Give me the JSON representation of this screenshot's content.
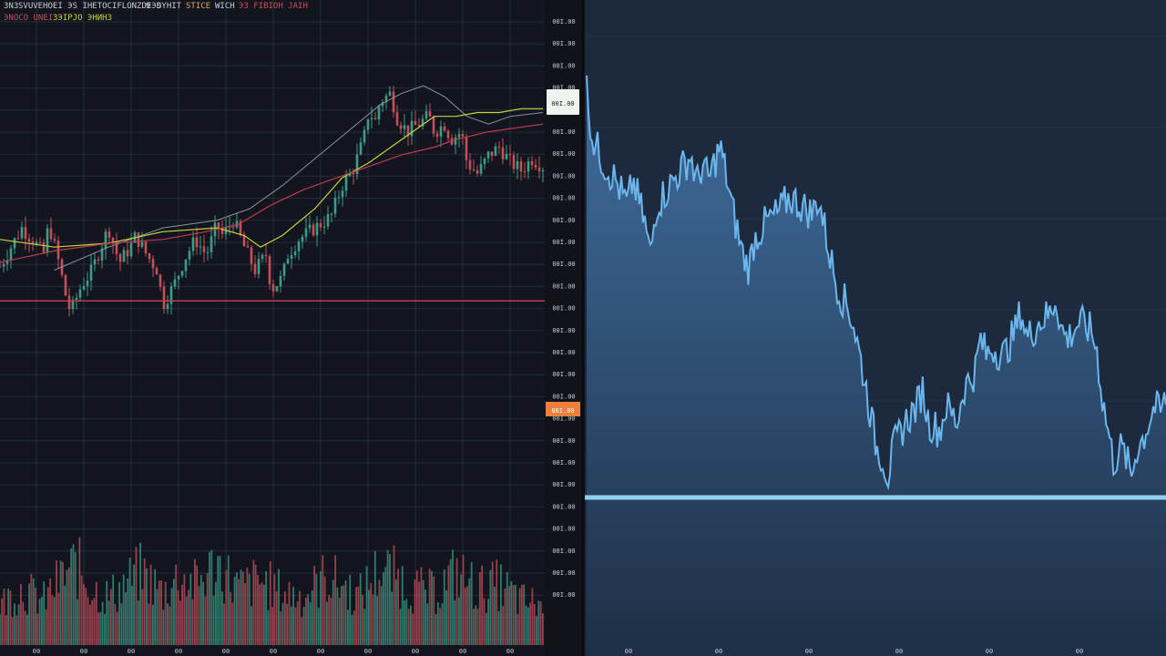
{
  "colors": {
    "background_left": "#12151d",
    "background_right": "#1d2a3d",
    "grid": "#262c38",
    "candle_up": "#3e9c86",
    "candle_down": "#c4505c",
    "ma_fast": "#c9d23f",
    "ma_slow": "#c0394f",
    "ma_thin": "#8c9099",
    "area_line": "#6cb6ee",
    "area_fill_top": "#3f6e9e",
    "area_fill_bottom": "#1e2f46",
    "support_line": "#8fd0ee",
    "price_tag_current": "#f1f3ef",
    "price_tag_alert": "#f07e3d",
    "alert_line": "#b8404c"
  },
  "header": {
    "line1_a": "ЗNЗ",
    "line1_b": "SVUVEHOEI ЭS IHETOCIFLONZDEЭD",
    "line1_c": "9",
    "line1_d": "SYHIT",
    "line1_e": "STICE",
    "line1_f": "WICH",
    "line1_g": "ЭЗ FIBIOH JAIH",
    "line2_a": "ЭNOCO UNEI",
    "line2_b": "ЗЭIPJO ЭНИНЗ"
  },
  "price_axis": {
    "labels": [
      "00I.00",
      "00I.00",
      "00I.00",
      "00I.00",
      "00I.00",
      "00I.00",
      "00I.00",
      "00I.00",
      "00I.00",
      "00I.00",
      "00I.00",
      "00I.00",
      "00I.00",
      "00I.00",
      "00I.00",
      "00I.00",
      "00I.00",
      "00I.00",
      "00I.00",
      "00I.00",
      "00I.00",
      "00I.00",
      "00I.00",
      "00I.00",
      "00I.00",
      "00I.00",
      "00I.00"
    ],
    "current_tag": "00I.00",
    "alert_tag": "00I.00"
  },
  "time_axis": {
    "left_labels": [
      "00",
      "00",
      "00",
      "00",
      "00",
      "00",
      "00",
      "00",
      "00",
      "00",
      "00"
    ],
    "right_labels": [
      "00",
      "00",
      "00",
      "00",
      "00",
      "00"
    ]
  },
  "chart_data": [
    {
      "type": "candlestick",
      "panel": "left",
      "title": "",
      "xlabel": "",
      "ylabel": "",
      "ylim": [
        0,
        100
      ],
      "x_range": [
        0,
        100
      ],
      "price_path": [
        [
          0,
          35
        ],
        [
          2,
          40
        ],
        [
          4,
          45
        ],
        [
          6,
          42
        ],
        [
          8,
          38
        ],
        [
          9,
          46
        ],
        [
          11,
          35
        ],
        [
          12,
          28
        ],
        [
          13,
          23
        ],
        [
          15,
          30
        ],
        [
          17,
          34
        ],
        [
          18,
          38
        ],
        [
          20,
          45
        ],
        [
          22,
          36
        ],
        [
          24,
          40
        ],
        [
          25,
          43
        ],
        [
          27,
          38
        ],
        [
          29,
          34
        ],
        [
          30,
          25
        ],
        [
          32,
          30
        ],
        [
          34,
          37
        ],
        [
          36,
          42
        ],
        [
          38,
          38
        ],
        [
          40,
          46
        ],
        [
          41,
          43
        ],
        [
          43,
          47
        ],
        [
          45,
          40
        ],
        [
          47,
          34
        ],
        [
          49,
          38
        ],
        [
          50,
          29
        ],
        [
          52,
          32
        ],
        [
          53,
          38
        ],
        [
          55,
          42
        ],
        [
          57,
          44
        ],
        [
          59,
          46
        ],
        [
          61,
          48
        ],
        [
          63,
          56
        ],
        [
          65,
          60
        ],
        [
          67,
          68
        ],
        [
          68,
          76
        ],
        [
          69,
          72
        ],
        [
          70,
          78
        ],
        [
          72,
          80
        ],
        [
          73,
          74
        ],
        [
          75,
          70
        ],
        [
          77,
          72
        ],
        [
          79,
          74
        ],
        [
          80,
          70
        ],
        [
          82,
          72
        ],
        [
          83,
          68
        ],
        [
          85,
          70
        ],
        [
          86,
          62
        ],
        [
          88,
          59
        ],
        [
          90,
          64
        ],
        [
          92,
          66
        ],
        [
          94,
          62
        ],
        [
          96,
          60
        ],
        [
          98,
          63
        ],
        [
          100,
          61
        ]
      ],
      "ma_fast": [
        [
          0,
          42
        ],
        [
          10,
          40
        ],
        [
          20,
          41
        ],
        [
          30,
          44
        ],
        [
          40,
          45
        ],
        [
          45,
          43
        ],
        [
          48,
          40
        ],
        [
          52,
          43
        ],
        [
          58,
          50
        ],
        [
          63,
          58
        ],
        [
          68,
          62
        ],
        [
          72,
          66
        ],
        [
          76,
          70
        ],
        [
          80,
          74
        ],
        [
          84,
          74
        ],
        [
          88,
          75
        ],
        [
          92,
          75
        ],
        [
          96,
          76
        ],
        [
          100,
          76
        ]
      ],
      "ma_slow": [
        [
          0,
          36
        ],
        [
          10,
          39
        ],
        [
          20,
          41
        ],
        [
          30,
          42
        ],
        [
          38,
          44
        ],
        [
          44,
          46
        ],
        [
          50,
          51
        ],
        [
          56,
          55
        ],
        [
          62,
          58
        ],
        [
          68,
          61
        ],
        [
          74,
          64
        ],
        [
          80,
          66
        ],
        [
          84,
          68
        ],
        [
          90,
          70
        ],
        [
          100,
          72
        ]
      ],
      "ma_thin": [
        [
          10,
          34
        ],
        [
          20,
          40
        ],
        [
          30,
          45
        ],
        [
          40,
          47
        ],
        [
          46,
          50
        ],
        [
          52,
          56
        ],
        [
          58,
          63
        ],
        [
          64,
          70
        ],
        [
          70,
          77
        ],
        [
          74,
          80
        ],
        [
          78,
          82
        ],
        [
          82,
          79
        ],
        [
          86,
          74
        ],
        [
          90,
          72
        ],
        [
          94,
          74
        ],
        [
          100,
          75
        ]
      ],
      "volume": [
        [
          0,
          20
        ],
        [
          4,
          28
        ],
        [
          8,
          22
        ],
        [
          11,
          32
        ],
        [
          14,
          40
        ],
        [
          17,
          28
        ],
        [
          20,
          24
        ],
        [
          23,
          30
        ],
        [
          26,
          36
        ],
        [
          30,
          26
        ],
        [
          33,
          34
        ],
        [
          36,
          30
        ],
        [
          40,
          40
        ],
        [
          44,
          28
        ],
        [
          48,
          32
        ],
        [
          52,
          26
        ],
        [
          56,
          24
        ],
        [
          60,
          34
        ],
        [
          63,
          30
        ],
        [
          66,
          24
        ],
        [
          70,
          38
        ],
        [
          73,
          34
        ],
        [
          76,
          28
        ],
        [
          80,
          26
        ],
        [
          84,
          36
        ],
        [
          88,
          28
        ],
        [
          92,
          30
        ],
        [
          96,
          22
        ],
        [
          100,
          20
        ]
      ],
      "alert_level": 26
    },
    {
      "type": "area",
      "panel": "right",
      "title": "",
      "xlabel": "",
      "ylabel": "",
      "ylim": [
        0,
        100
      ],
      "x_range": [
        0,
        100
      ],
      "values": [
        [
          0,
          98
        ],
        [
          1,
          86
        ],
        [
          3,
          80
        ],
        [
          5,
          76
        ],
        [
          7,
          70
        ],
        [
          8,
          76
        ],
        [
          10,
          66
        ],
        [
          11,
          58
        ],
        [
          12,
          70
        ],
        [
          14,
          74
        ],
        [
          16,
          78
        ],
        [
          18,
          82
        ],
        [
          19,
          75
        ],
        [
          20,
          80
        ],
        [
          21,
          76
        ],
        [
          23,
          84
        ],
        [
          24,
          78
        ],
        [
          25,
          70
        ],
        [
          26,
          64
        ],
        [
          27,
          58
        ],
        [
          28,
          55
        ],
        [
          29,
          62
        ],
        [
          31,
          66
        ],
        [
          33,
          68
        ],
        [
          35,
          72
        ],
        [
          37,
          70
        ],
        [
          39,
          68
        ],
        [
          40,
          72
        ],
        [
          41,
          65
        ],
        [
          42,
          58
        ],
        [
          43,
          52
        ],
        [
          44,
          48
        ],
        [
          45,
          46
        ],
        [
          46,
          42
        ],
        [
          47,
          35
        ],
        [
          48,
          28
        ],
        [
          49,
          20
        ],
        [
          50,
          12
        ],
        [
          51,
          10
        ],
        [
          52,
          5
        ],
        [
          53,
          12
        ],
        [
          55,
          18
        ],
        [
          57,
          22
        ],
        [
          58,
          26
        ],
        [
          59,
          18
        ],
        [
          61,
          16
        ],
        [
          62,
          22
        ],
        [
          63,
          20
        ],
        [
          64,
          18
        ],
        [
          65,
          26
        ],
        [
          67,
          30
        ],
        [
          68,
          38
        ],
        [
          69,
          34
        ],
        [
          70,
          36
        ],
        [
          72,
          34
        ],
        [
          74,
          40
        ],
        [
          75,
          45
        ],
        [
          76,
          38
        ],
        [
          78,
          42
        ],
        [
          80,
          44
        ],
        [
          81,
          48
        ],
        [
          82,
          40
        ],
        [
          83,
          38
        ],
        [
          85,
          42
        ],
        [
          87,
          40
        ],
        [
          88,
          36
        ],
        [
          89,
          24
        ],
        [
          90,
          16
        ],
        [
          91,
          8
        ],
        [
          92,
          12
        ],
        [
          93,
          10
        ],
        [
          94,
          5
        ],
        [
          95,
          12
        ],
        [
          96,
          14
        ],
        [
          97,
          18
        ],
        [
          98,
          22
        ],
        [
          99,
          20
        ],
        [
          100,
          24
        ]
      ],
      "support_level": 0
    }
  ]
}
